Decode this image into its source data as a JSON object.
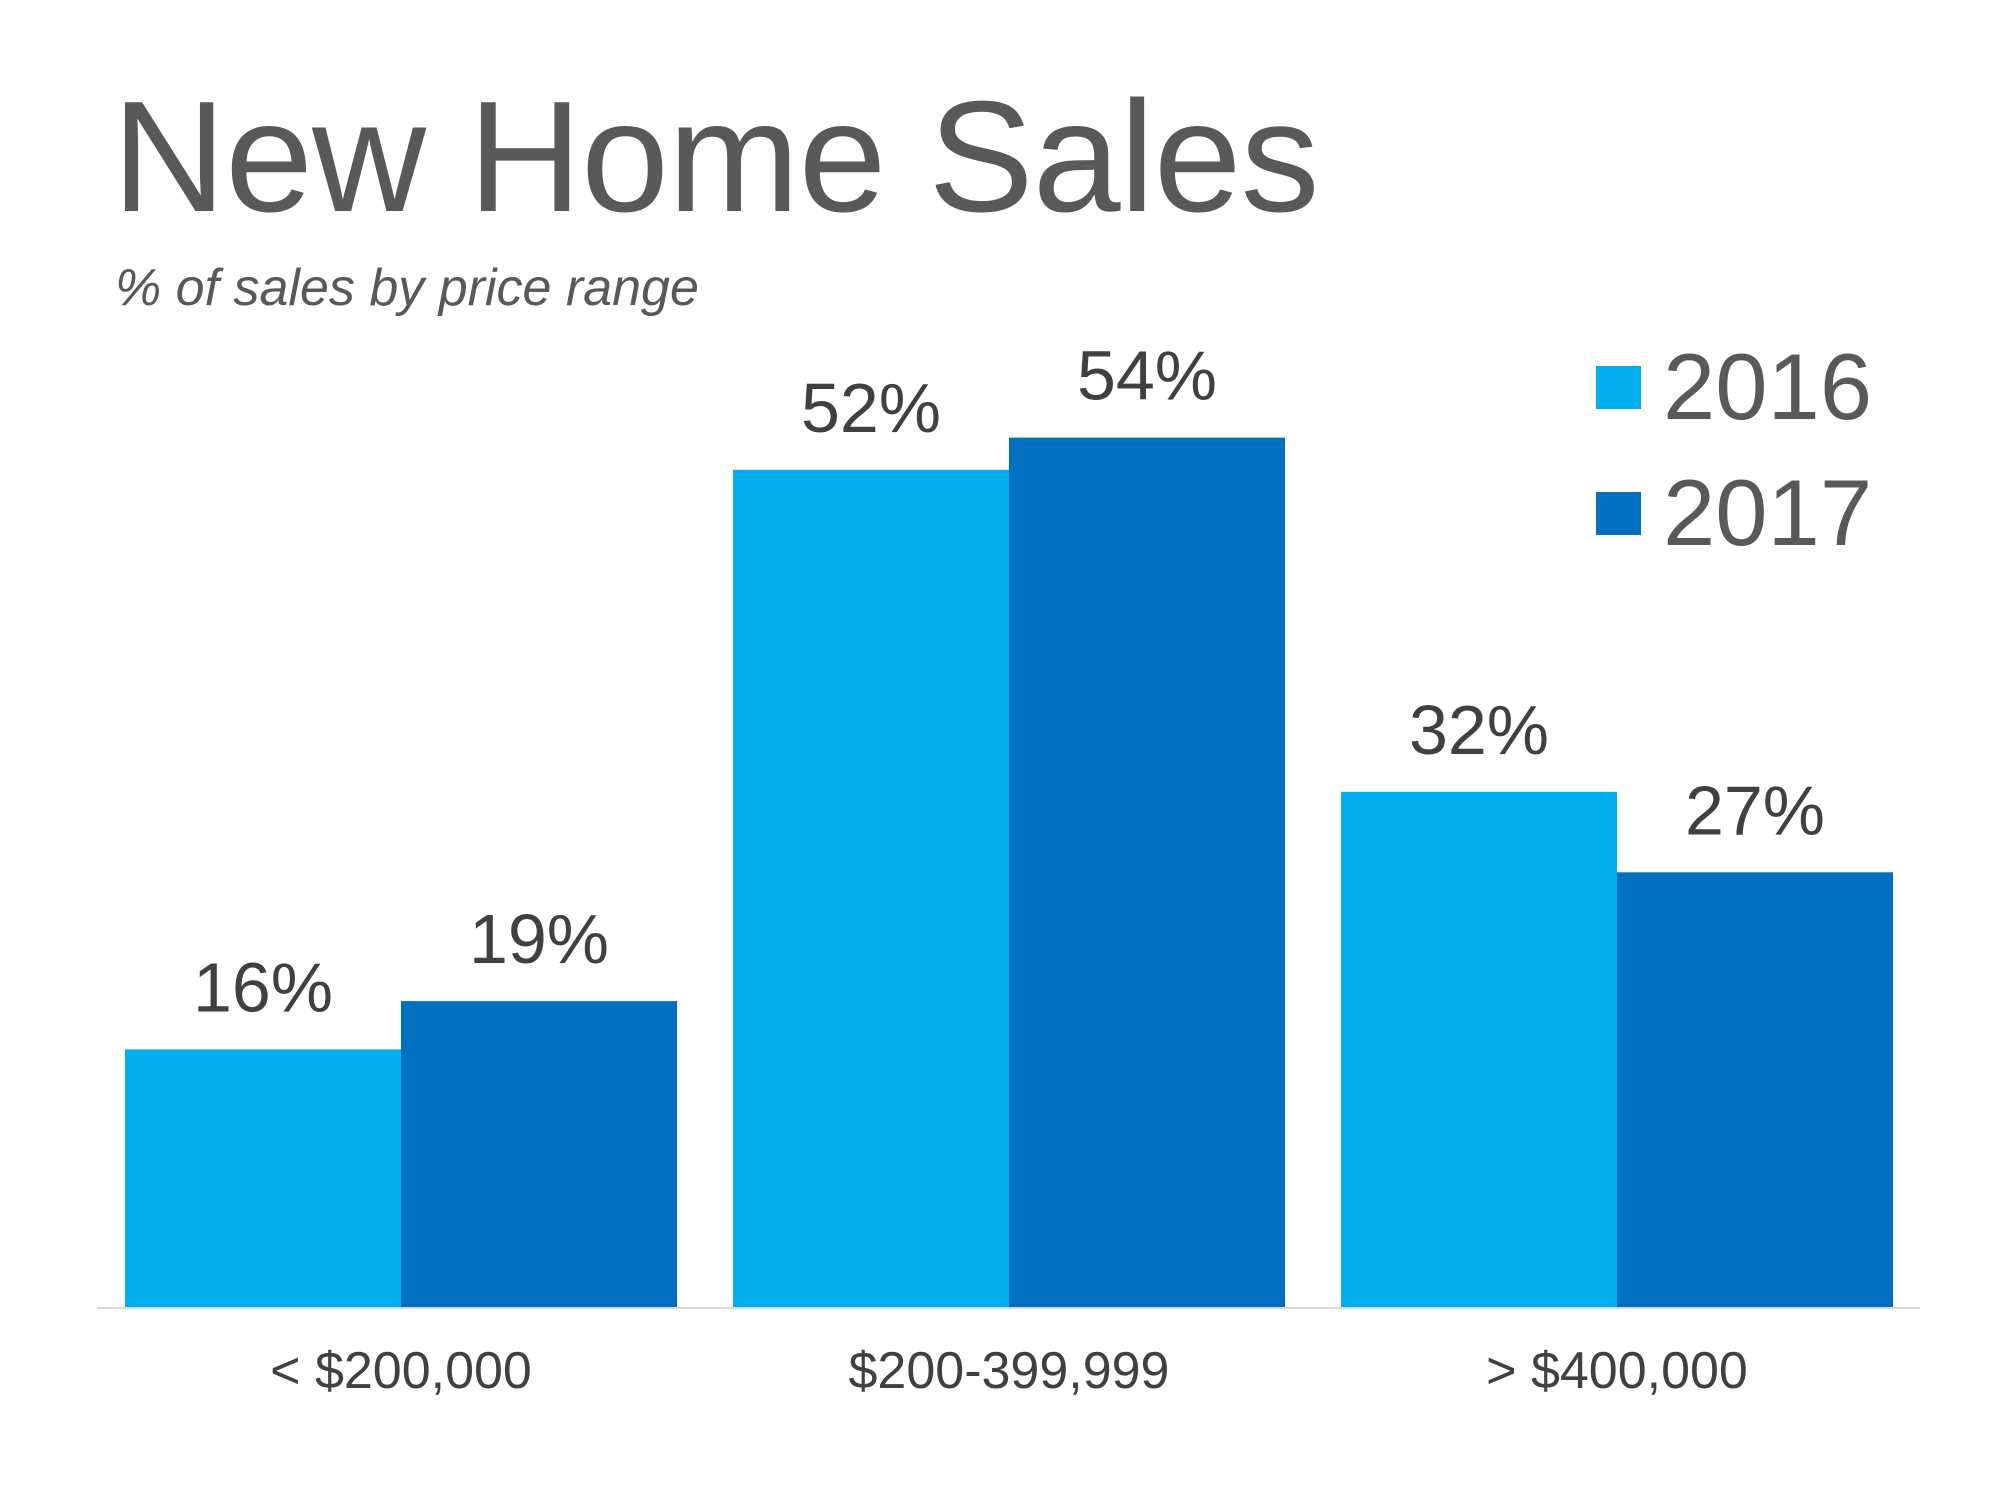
{
  "chart_data": {
    "type": "bar",
    "title": "New Home Sales",
    "subtitle": "% of sales by price range",
    "categories": [
      "< $200,000",
      "$200-399,999",
      "> $400,000"
    ],
    "series": [
      {
        "name": "2016",
        "values": [
          16,
          52,
          32
        ],
        "color": "#00AEEF"
      },
      {
        "name": "2017",
        "values": [
          19,
          54,
          27
        ],
        "color": "#0071C1"
      }
    ],
    "value_format": "percent",
    "ylim": [
      0,
      54
    ],
    "grid": false,
    "legend": "top-right",
    "axis_line_color": "#D9D9D9"
  }
}
